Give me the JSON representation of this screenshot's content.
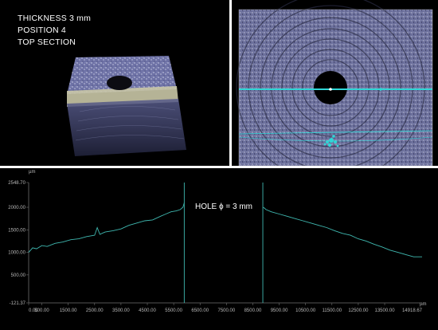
{
  "top_left_panel": {
    "info_lines": [
      "THICKNESS 3 mm",
      "POSITION 4",
      "TOP SECTION"
    ]
  },
  "profile_chart": {
    "annotation": "HOLE ϕ = 3 mm",
    "colors": {
      "profile": "#3fb8b0",
      "axis": "#6f6f6f",
      "background": "#000000",
      "marker": "#3fb8b0"
    }
  },
  "chart_data": {
    "type": "line",
    "y_unit": "µm",
    "x_unit": "µm",
    "xlim": [
      0,
      14918.67
    ],
    "ylim": [
      -121.37,
      2548.7
    ],
    "x_tick_labels": [
      "0.00",
      "500.00",
      "1500.00",
      "2500.00",
      "3500.00",
      "4500.00",
      "5500.00",
      "6500.00",
      "7500.00",
      "8500.00",
      "9500.00",
      "10500.00",
      "11500.00",
      "12500.00",
      "13500.00",
      "14918.67"
    ],
    "x_ticks": [
      0,
      500,
      1500,
      2500,
      3500,
      4500,
      5500,
      6500,
      7500,
      8500,
      9500,
      10500,
      11500,
      12500,
      13500,
      14918.67
    ],
    "y_tick_labels": [
      "2548.70",
      "2000.00",
      "1500.00",
      "1000.00",
      "500.00",
      "-121.37"
    ],
    "y_ticks": [
      2548.7,
      2000,
      1500,
      1000,
      500,
      -121.37
    ],
    "hole_edges_x": [
      5900,
      8880
    ],
    "series": [
      {
        "x": [
          0,
          150,
          300,
          500,
          700,
          1000,
          1300,
          1600,
          1900,
          2200,
          2500,
          2600,
          2700,
          2900,
          3200,
          3500,
          3800,
          4100,
          4400,
          4700,
          5000,
          5200,
          5400,
          5600,
          5750,
          5850,
          5900
        ],
        "y": [
          1000,
          1100,
          1080,
          1150,
          1130,
          1200,
          1230,
          1280,
          1300,
          1350,
          1380,
          1550,
          1400,
          1450,
          1480,
          1520,
          1600,
          1650,
          1700,
          1720,
          1800,
          1850,
          1900,
          1920,
          1950,
          2000,
          2100
        ]
      },
      {
        "x": [
          8900,
          9000,
          9200,
          9500,
          9800,
          10100,
          10400,
          10700,
          11000,
          11300,
          11600,
          11900,
          12200,
          12500,
          12800,
          13100,
          13400,
          13700,
          14000,
          14300,
          14600,
          14918.67
        ],
        "y": [
          2000,
          1950,
          1900,
          1850,
          1800,
          1750,
          1700,
          1650,
          1600,
          1550,
          1480,
          1420,
          1380,
          1300,
          1250,
          1180,
          1120,
          1050,
          1000,
          950,
          900,
          900
        ]
      }
    ]
  }
}
